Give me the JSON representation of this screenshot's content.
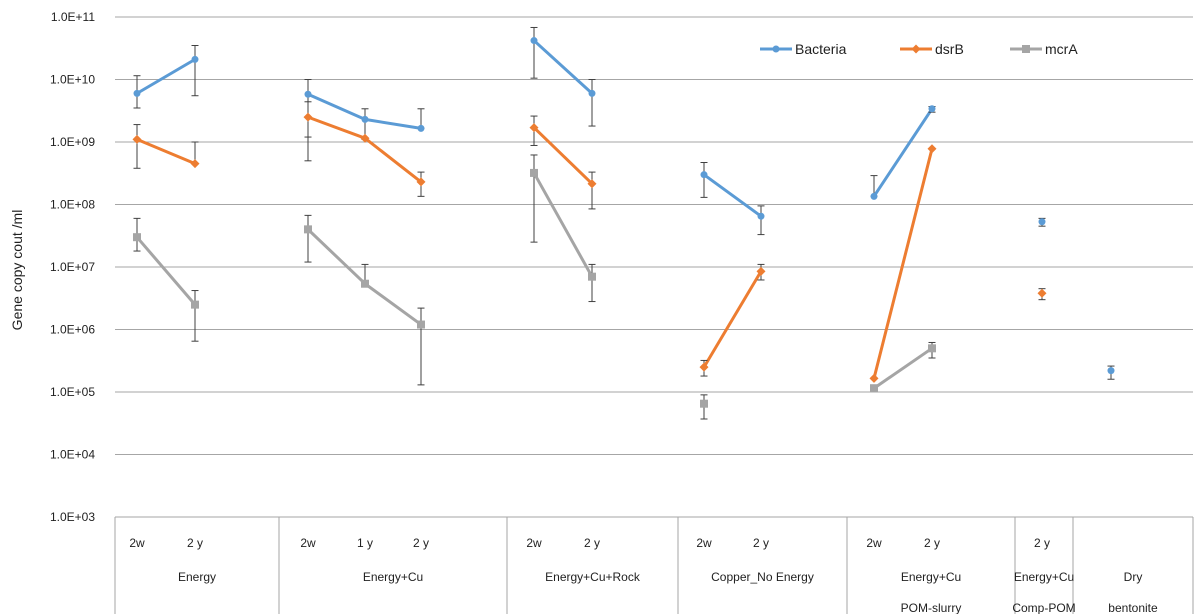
{
  "chart_data": {
    "type": "line",
    "ylabel": "Gene copy cout /ml",
    "yscale": "log",
    "ylim": [
      1000,
      100000000000
    ],
    "y_tick_labels": [
      "1.0E+03",
      "1.0E+04",
      "1.0E+05",
      "1.0E+06",
      "1.0E+07",
      "1.0E+08",
      "1.0E+09",
      "1.0E+10",
      "1.0E+11"
    ],
    "grid": true,
    "legend_position": "top-right",
    "categories": [
      {
        "label": "2w",
        "group": "Energy"
      },
      {
        "label": "2 y",
        "group": "Energy"
      },
      {
        "label": "2w",
        "group": "Energy+Cu"
      },
      {
        "label": "1 y",
        "group": "Energy+Cu"
      },
      {
        "label": "2 y",
        "group": "Energy+Cu"
      },
      {
        "label": "2w",
        "group": "Energy+Cu+Rock"
      },
      {
        "label": "2 y",
        "group": "Energy+Cu+Rock"
      },
      {
        "label": "2w",
        "group": "Copper_No Energy"
      },
      {
        "label": "2 y",
        "group": "Copper_No Energy"
      },
      {
        "label": "2w",
        "group": "Energy+Cu POM-slurry"
      },
      {
        "label": "2 y",
        "group": "Energy+Cu POM-slurry"
      },
      {
        "label": "2 y",
        "group": "Energy+Cu Comp-POM"
      },
      {
        "label": "",
        "group": "Dry bentonite"
      }
    ],
    "groups": [
      {
        "name": "Energy",
        "sub": "",
        "count": 2
      },
      {
        "name": "Energy+Cu",
        "sub": "",
        "count": 3
      },
      {
        "name": "Energy+Cu+Rock",
        "sub": "",
        "count": 2
      },
      {
        "name": "Copper_No Energy",
        "sub": "",
        "count": 2
      },
      {
        "name": "Energy+Cu",
        "sub": "POM-slurry",
        "count": 2
      },
      {
        "name": "Energy+Cu",
        "sub": "Comp-POM",
        "count": 1
      },
      {
        "name": "Dry",
        "sub": "bentonite",
        "count": 1
      }
    ],
    "series": [
      {
        "name": "Bacteria",
        "color": "#5b9bd5",
        "marker": "circle",
        "values": [
          6000000000,
          21000000000,
          5800000000,
          2300000000,
          1650000000,
          42000000000,
          6000000000,
          300000000,
          65000000,
          135000000,
          3400000000,
          53000000,
          220000
        ],
        "err_low": [
          3500000000,
          5500000000,
          1200000000,
          1100000000,
          1650000000,
          10500000000,
          1800000000,
          130000000,
          33000000,
          135000000,
          3000000000,
          45000000,
          160000
        ],
        "err_high": [
          11500000000,
          35000000000,
          10000000000,
          3400000000,
          3400000000,
          68000000000,
          10000000000,
          470000000,
          95000000,
          290000000,
          3700000000,
          60000000,
          260000
        ],
        "segments": [
          [
            0,
            1
          ],
          [
            2,
            4
          ],
          [
            5,
            6
          ],
          [
            7,
            8
          ],
          [
            9,
            10
          ],
          [
            11,
            11
          ],
          [
            12,
            12
          ]
        ]
      },
      {
        "name": "dsrB",
        "color": "#ed7d31",
        "marker": "diamond",
        "values": [
          1100000000,
          450000000,
          2500000000,
          1150000000,
          230000000,
          1700000000,
          215000000,
          250000,
          8500000,
          165000,
          780000000,
          3800000,
          null
        ],
        "err_low": [
          380000000,
          450000000,
          500000000,
          1150000000,
          135000000,
          880000000,
          85000000,
          180000,
          6200000,
          165000,
          780000000,
          3000000,
          null
        ],
        "err_high": [
          1900000000,
          1000000000,
          4400000000,
          1150000000,
          330000000,
          2600000000,
          330000000,
          320000,
          11000000,
          165000,
          780000000,
          4500000,
          null
        ],
        "segments": [
          [
            0,
            1
          ],
          [
            2,
            4
          ],
          [
            5,
            6
          ],
          [
            7,
            8
          ],
          [
            9,
            10
          ],
          [
            11,
            11
          ]
        ]
      },
      {
        "name": "mcrA",
        "color": "#a5a5a5",
        "marker": "square",
        "values": [
          30000000,
          2500000,
          40000000,
          5400000,
          1200000,
          320000000,
          7000000,
          65000,
          null,
          115000,
          500000,
          null,
          null
        ],
        "err_low": [
          18000000,
          650000,
          12000000,
          5400000,
          130000,
          25000000,
          2800000,
          37000,
          null,
          115000,
          350000,
          null,
          null
        ],
        "err_high": [
          60000000,
          4200000,
          67000000,
          11000000,
          2200000,
          620000000,
          11000000,
          90000,
          null,
          115000,
          620000,
          null,
          null
        ],
        "segments": [
          [
            0,
            1
          ],
          [
            2,
            4
          ],
          [
            5,
            6
          ],
          [
            7,
            7
          ],
          [
            9,
            10
          ]
        ]
      }
    ]
  }
}
